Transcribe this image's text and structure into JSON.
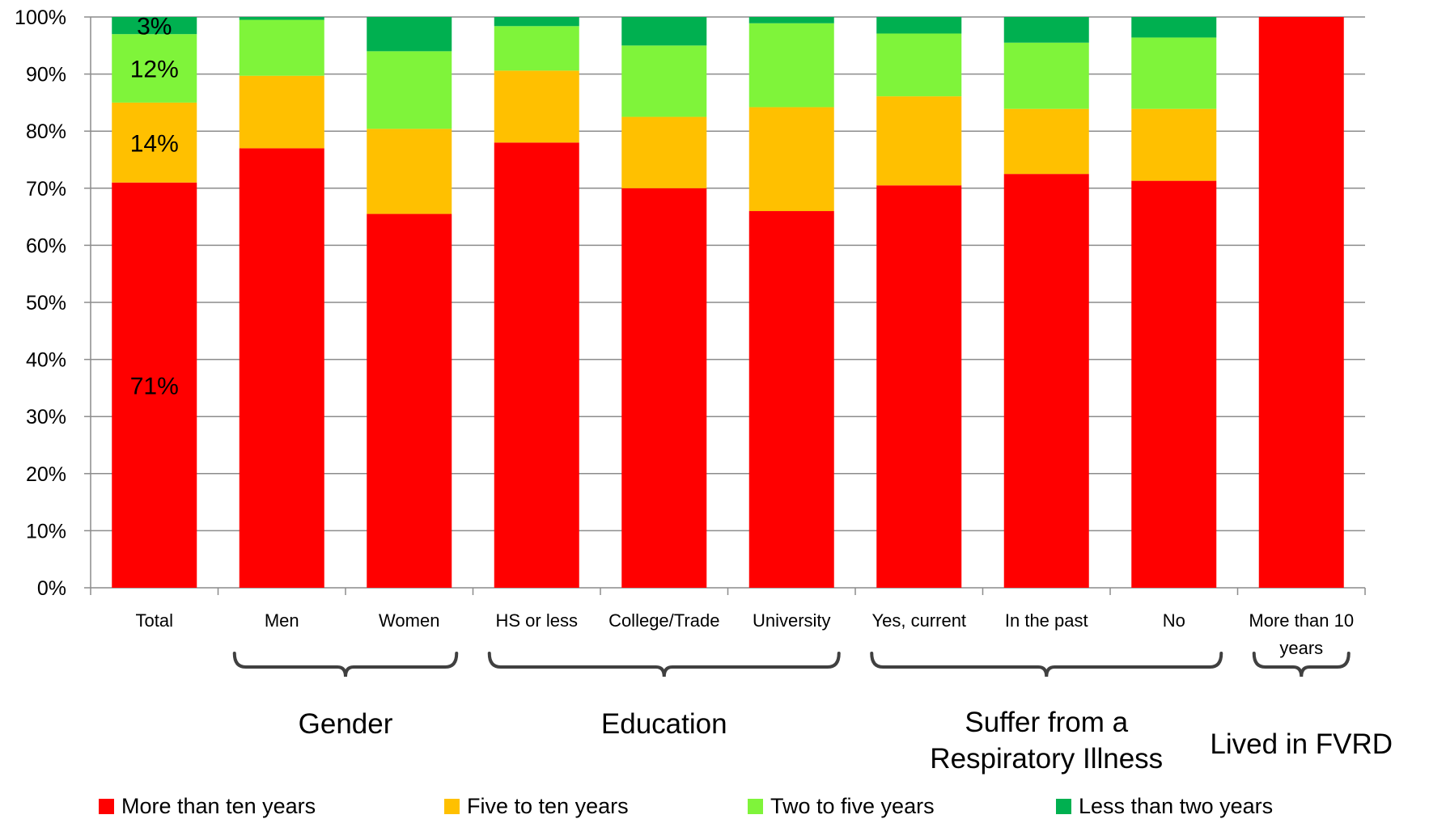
{
  "chart_data": {
    "type": "bar",
    "stacked": true,
    "percent": true,
    "categories": [
      "Total",
      "Men",
      "Women",
      "HS or less",
      "College/Trade",
      "University",
      "Yes, current",
      "In the past",
      "No",
      "More than 10 years"
    ],
    "series": [
      {
        "name": "More than ten years",
        "color": "#ff0000",
        "values": [
          71,
          77,
          65.5,
          78,
          70,
          66,
          70.5,
          72.5,
          71.3,
          100
        ]
      },
      {
        "name": "Five to ten years",
        "color": "#ffc000",
        "values": [
          14,
          12.7,
          14.9,
          12.6,
          12.5,
          18.2,
          15.6,
          11.4,
          12.6,
          0
        ]
      },
      {
        "name": "Two to five years",
        "color": "#7ff43a",
        "values": [
          12,
          9.8,
          13.6,
          7.8,
          12.5,
          14.7,
          11,
          11.6,
          12.5,
          0
        ]
      },
      {
        "name": "Less than two years",
        "color": "#00b050",
        "values": [
          3,
          0.5,
          6,
          1.6,
          5,
          1.1,
          2.9,
          4.5,
          3.6,
          0
        ]
      }
    ],
    "y_ticks": [
      "0%",
      "10%",
      "20%",
      "30%",
      "40%",
      "50%",
      "60%",
      "70%",
      "80%",
      "90%",
      "100%"
    ],
    "ylim": [
      0,
      100
    ],
    "grid": true,
    "legend_position": "bottom",
    "data_labels": [
      {
        "category": "Total",
        "series": "More than ten years",
        "text": "71%"
      },
      {
        "category": "Total",
        "series": "Five to ten years",
        "text": "14%"
      },
      {
        "category": "Total",
        "series": "Two to five years",
        "text": "12%"
      },
      {
        "category": "Total",
        "series": "Less than two years",
        "text": "3%"
      }
    ],
    "groups": [
      {
        "lines": [
          "Gender"
        ],
        "categories": [
          "Men",
          "Women"
        ]
      },
      {
        "lines": [
          "Education"
        ],
        "categories": [
          "HS or less",
          "College/Trade",
          "University"
        ]
      },
      {
        "lines": [
          "Suffer from a",
          "Respiratory Illness"
        ],
        "categories": [
          "Yes, current",
          "In the past",
          "No"
        ]
      },
      {
        "lines": [
          "Lived in FVRD"
        ],
        "categories": [
          "More than 10 years"
        ]
      }
    ]
  }
}
